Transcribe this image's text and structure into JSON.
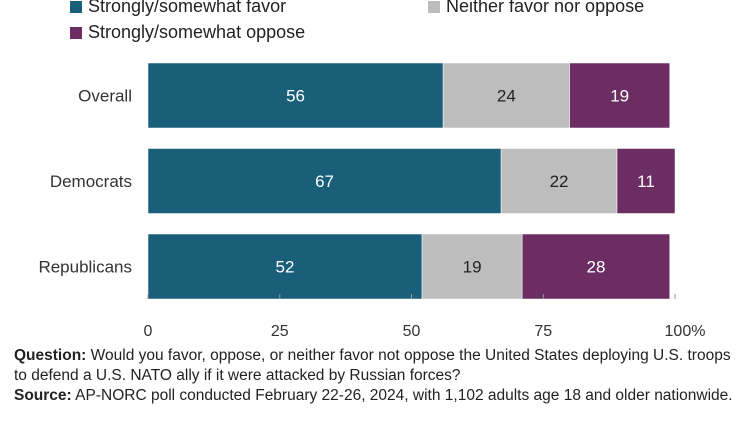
{
  "chart_data": {
    "type": "bar",
    "orientation": "horizontal",
    "stacked": true,
    "categories": [
      "Overall",
      "Democrats",
      "Republicans"
    ],
    "series": [
      {
        "name": "Strongly/somewhat favor",
        "color": "#1a5f7a",
        "values": [
          56,
          67,
          52
        ]
      },
      {
        "name": "Neither favor nor oppose",
        "color": "#bdbdbd",
        "values": [
          24,
          22,
          19
        ]
      },
      {
        "name": "Strongly/somewhat oppose",
        "color": "#6b2d62",
        "values": [
          19,
          11,
          28
        ]
      }
    ],
    "xlim": [
      0,
      100
    ],
    "xticks": [
      0,
      25,
      50,
      75,
      100
    ],
    "xtick_suffix": "%",
    "legend_position": "top",
    "grid": false
  },
  "notes": {
    "question_label": "Question:",
    "question_text": "Would you favor, oppose, or neither favor not oppose the United States deploying U.S. troops to defend a U.S. NATO ally if it were attacked by Russian forces?",
    "source_label": "Source:",
    "source_text": "AP-NORC poll conducted February 22-26, 2024, with 1,102 adults age 18 and older nationwide."
  }
}
